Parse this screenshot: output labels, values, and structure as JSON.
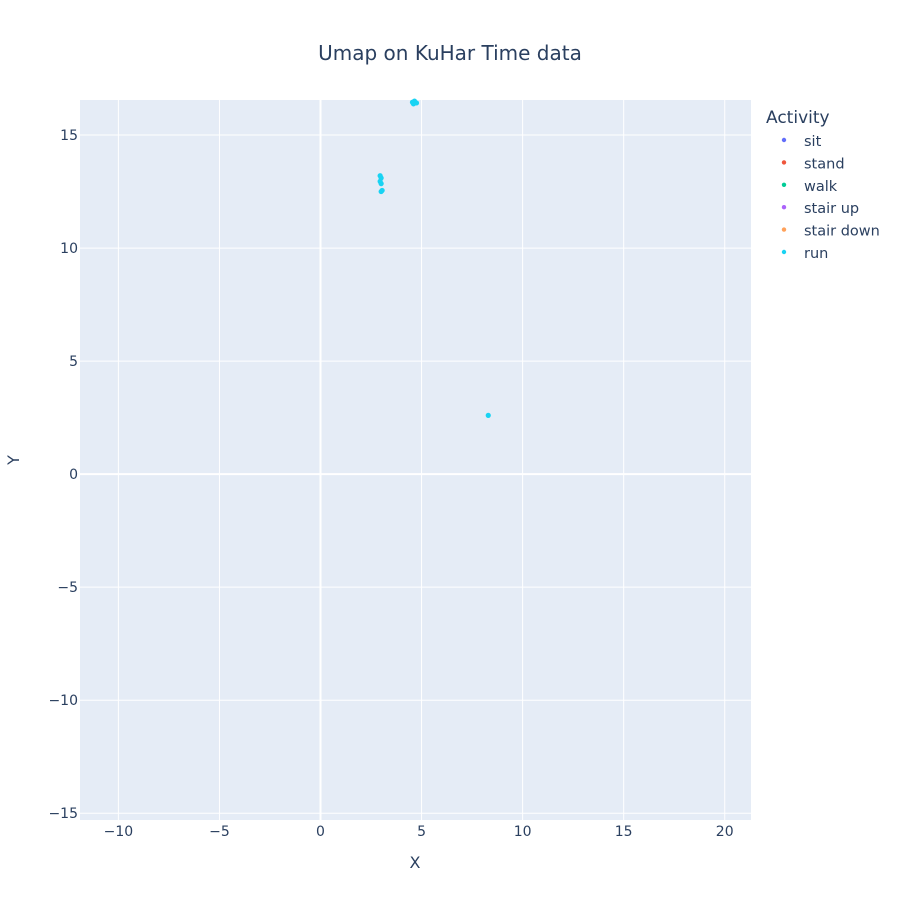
{
  "chart_data": {
    "type": "scatter",
    "title": "Umap on KuHar   Time data",
    "xlabel": "X",
    "ylabel": "Y",
    "xlim": [
      -11.9,
      21.3
    ],
    "ylim": [
      -15.3,
      16.55
    ],
    "x_ticks": [
      -10,
      -5,
      0,
      5,
      10,
      15,
      20
    ],
    "x_tick_labels": [
      "−10",
      "−5",
      "0",
      "5",
      "10",
      "15",
      "20"
    ],
    "y_ticks": [
      -15,
      -10,
      -5,
      0,
      5,
      10,
      15
    ],
    "y_tick_labels": [
      "−15",
      "−10",
      "−5",
      "0",
      "5",
      "10",
      "15"
    ],
    "grid": true,
    "plot_background": "#e5ecf6",
    "legend": {
      "title": "Activity",
      "position": "right"
    },
    "series": [
      {
        "name": "sit",
        "color": "#636efa",
        "points": []
      },
      {
        "name": "stand",
        "color": "#ef553b",
        "points": []
      },
      {
        "name": "walk",
        "color": "#00cc96",
        "points": []
      },
      {
        "name": "stair up",
        "color": "#ab63fa",
        "points": []
      },
      {
        "name": "stair down",
        "color": "#ffa15a",
        "points": []
      },
      {
        "name": "run",
        "color": "#19d3f3",
        "points": [
          [
            4.55,
            16.45
          ],
          [
            4.65,
            16.5
          ],
          [
            4.75,
            16.42
          ],
          [
            4.6,
            16.38
          ],
          [
            2.95,
            13.2
          ],
          [
            3.0,
            13.1
          ],
          [
            2.95,
            12.95
          ],
          [
            3.0,
            12.85
          ],
          [
            3.05,
            12.55
          ],
          [
            3.0,
            12.5
          ],
          [
            8.3,
            2.6
          ]
        ]
      }
    ]
  }
}
